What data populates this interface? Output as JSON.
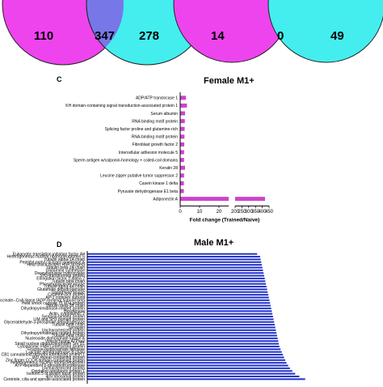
{
  "venn_left": {
    "left_only": "110",
    "overlap": "347",
    "right_only": "278",
    "left_color": "#ee44ee",
    "right_color": "#44eeee",
    "overlap_color": "#7777e8"
  },
  "venn_right": {
    "left_only": "14",
    "overlap": "0",
    "right_only": "49",
    "left_color": "#ee44ee",
    "right_color": "#44eeee"
  },
  "panel_c": {
    "letter": "C",
    "title": "Female M1+"
  },
  "panel_d": {
    "letter": "D",
    "title": "Male M1+"
  },
  "chart_data": [
    {
      "type": "bar",
      "orientation": "horizontal",
      "title": "Female M1+",
      "xlabel": "Fold change (Trained/Naive)",
      "ylabel": "",
      "color": "#cc44cc",
      "axis_break": [
        25,
        200
      ],
      "xlim": [
        0,
        450
      ],
      "xticks": [
        0,
        10,
        20,
        200,
        250,
        300,
        350,
        400,
        450
      ],
      "categories": [
        "ADP/ATP translocase 1",
        "KH domain-containing signal transduction-associated protein 1",
        "Serum albumin",
        "RNA binding motif protein",
        "Splicing factor proline and glutamine-rich",
        "RNA-binding motif protein",
        "Fibroblast growth factor 2",
        "Intercellular adhesion molecule 5",
        "Sperm antigen w/calponin-homology + coiled-coil domains",
        "Keratin 28",
        "Leucine zipper putative tumor suppressor 2",
        "Casein kinase 1 delta",
        "Pyruvate dehydrogenase E1 beta",
        "Adiponectin A"
      ],
      "values": [
        3,
        3.5,
        2.5,
        2.4,
        2.3,
        2.2,
        2.1,
        2.0,
        2.0,
        2.5,
        2.0,
        1.9,
        1.9,
        420
      ]
    },
    {
      "type": "bar",
      "orientation": "horizontal",
      "title": "Male M1+",
      "color": "#2233cc",
      "categories": [
        "Eukaryotic translation initiation factor 4H",
        "Heterogeneous nuclear ribonucleoprotein S",
        "Tubulin alpha-1A chain",
        "Peptidyl-prolyl cis-trans isomerase A",
        "Heat shock protein HSP 90-beta",
        "Tubulin beta-2A chain",
        "Glutamine synthetase",
        "Deoxyhypusine hydroxylase",
        "SH3-transforming protein",
        "Elongation factor 1-alpha 2",
        "Tubulin beta chain",
        "Phosphoglycerate kinase",
        "Tubulin alpha-4A chain",
        "Glutamate dehydrogenase",
        "Glutathione kinase",
        "Cysteine-rich protein",
        "AP-2 complex subunit",
        "Succinate--CoA ligase [ADP-forming] subunit beta",
        "Heat shock cognate 71 kDa protein",
        "Tubulin beta-2B chain",
        "Dihydropyrimidinase-related protein",
        "Hexokinase",
        "Actin, cytoplasmic 2",
        "Syntaxin-binding protein",
        "LIM and SH3 domain protein",
        "Glyceraldehyde-3-phosphate dehydrogenase",
        "Tubulin beta chain",
        "Synapsin",
        "Uncharacterized protein",
        "Dihydropyrimidinase-related protein",
        "Tubulin beta chain",
        "Nucleoside diphosphate kinase A",
        "Vesicle fusing ATPase",
        "Small nuclear ribonucleoprotein Sm D1",
        "Cytoplasmic FMR1-interacting protein",
        "Fructose-bisphosphate aldolase",
        "L-lactate dehydrogenase B chain",
        "CB1 cannabinoid receptor-interacting protein 1",
        "WD repeat-containing protein",
        "Zinc finger CCCH domain-containing protein",
        "Heterogeneous nuclear ribonucleoprotein",
        "ATP-dependent 6-phosphofructokinase",
        "Uncharacterized protein",
        "Oxidation resistance protein 1",
        "Isoform 5 of Myelin basic protein",
        "40S ribosomal protein",
        "Centriole, cilia and spindle-associated protein"
      ],
      "values": [
        2.9,
        2.95,
        2.96,
        2.97,
        2.98,
        2.99,
        3.0,
        3.01,
        3.02,
        3.03,
        3.04,
        3.05,
        3.06,
        3.07,
        3.08,
        3.09,
        3.1,
        3.11,
        3.12,
        3.13,
        3.14,
        3.15,
        3.16,
        3.17,
        3.18,
        3.19,
        3.2,
        3.21,
        3.22,
        3.23,
        3.24,
        3.25,
        3.26,
        3.27,
        3.28,
        3.3,
        3.32,
        3.34,
        3.36,
        3.38,
        3.4,
        3.43,
        3.46,
        3.5,
        3.55,
        3.62,
        3.72
      ]
    }
  ]
}
